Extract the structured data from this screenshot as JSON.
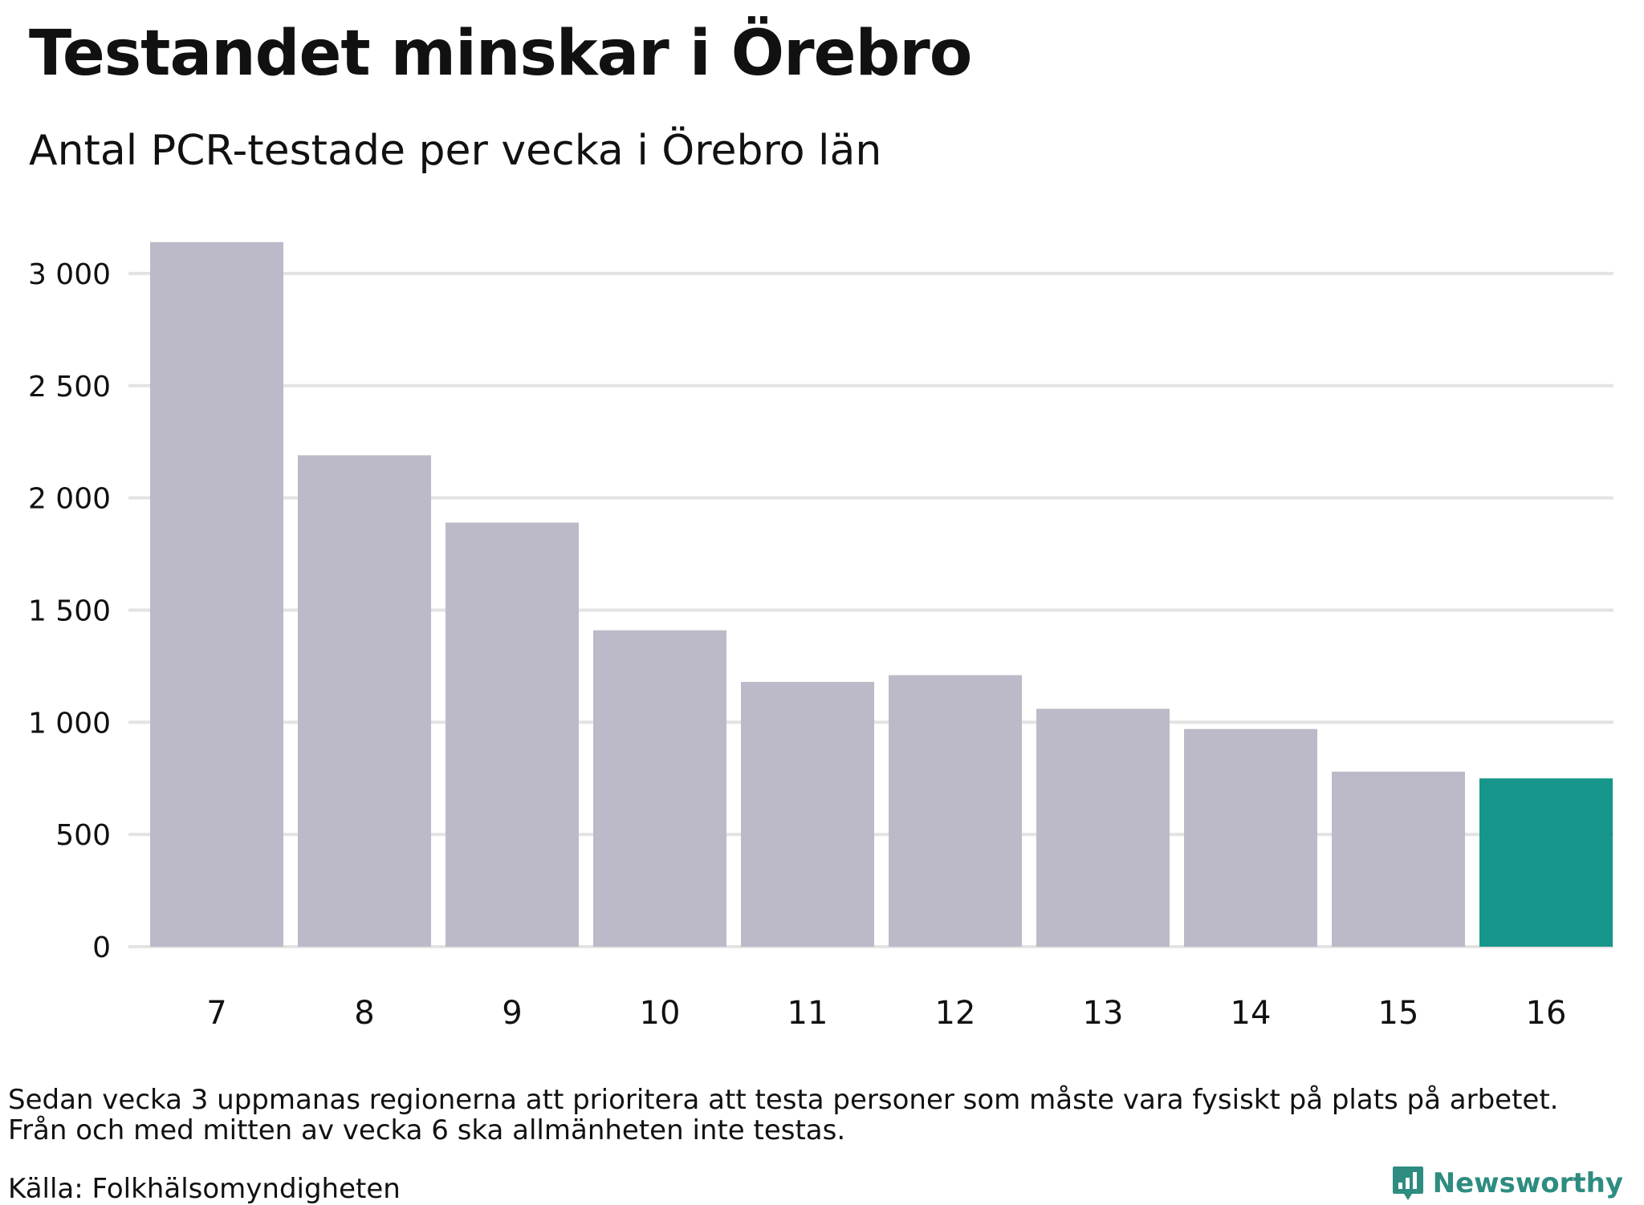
{
  "title": "Testandet minskar i Örebro",
  "subtitle": "Antal PCR-testade per vecka i Örebro län",
  "note_lines": [
    "Sedan vecka 3 uppmanas regionerna att prioritera att testa personer som måste vara fysiskt på plats på arbetet.",
    "Från och med mitten av vecka 6 ska allmänheten inte testas."
  ],
  "source": "Källa: Folkhälsomyndigheten",
  "brand": {
    "name": "Newsworthy",
    "icon": "newsworthy-logo-icon"
  },
  "colors": {
    "bar": "#bcbac8",
    "highlight": "#16958a",
    "grid": "#e3e3e3",
    "brand": "#2e8c80"
  },
  "chart_data": {
    "type": "bar",
    "categories": [
      "7",
      "8",
      "9",
      "10",
      "11",
      "12",
      "13",
      "14",
      "15",
      "16"
    ],
    "values": [
      3140,
      2190,
      1890,
      1410,
      1180,
      1210,
      1060,
      970,
      780,
      750
    ],
    "highlight_category": "16",
    "yticks": [
      0,
      500,
      1000,
      1500,
      2000,
      2500,
      3000
    ],
    "ytick_labels": [
      "0",
      "500",
      "1 000",
      "1 500",
      "2 000",
      "2 500",
      "3 000"
    ],
    "ylim": [
      0,
      3150
    ],
    "grid": true,
    "legend": "none",
    "xlabel": "",
    "ylabel": ""
  }
}
